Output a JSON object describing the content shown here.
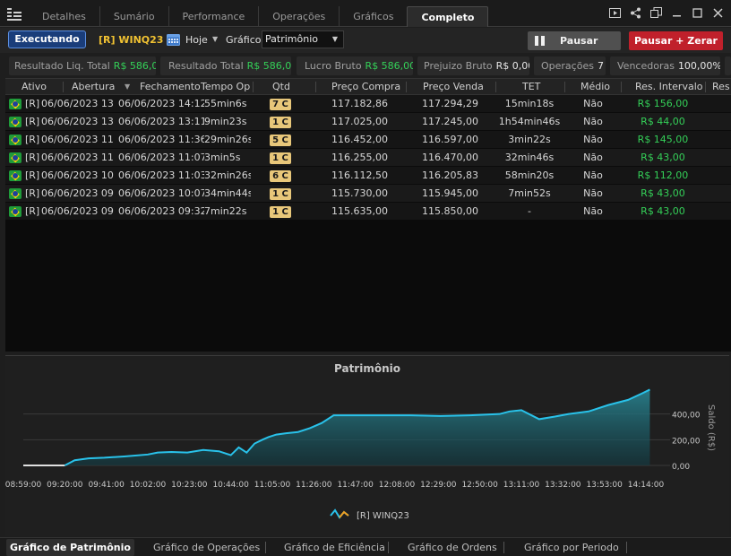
{
  "tabs": [
    "Detalhes",
    "Sumário",
    "Performance",
    "Operações",
    "Gráficos",
    "Completo"
  ],
  "active_tab": "Completo",
  "toolbar": {
    "status": "Executando",
    "asset": "[R] WINQ23",
    "period": "Hoje",
    "chart_label": "Gráfico",
    "chart_value": "Patrimônio",
    "pause": "Pausar",
    "pause_reset": "Pausar + Zerar"
  },
  "stats": [
    {
      "key": "Resultado Liq. Total",
      "value": "R$ 586,00",
      "color": "green"
    },
    {
      "key": "Resultado Total",
      "value": "R$ 586,00",
      "color": "green"
    },
    {
      "key": "Lucro Bruto",
      "value": "R$ 586,00",
      "color": "green"
    },
    {
      "key": "Prejuizo Bruto",
      "value": "R$ 0,00",
      "color": "white"
    },
    {
      "key": "Operações",
      "value": "7",
      "color": "white"
    },
    {
      "key": "Vencedoras",
      "value": "100,00%",
      "color": "white"
    }
  ],
  "table": {
    "headers": [
      "Ativo",
      "Abertura",
      "Fechamento",
      "Tempo Op",
      "Qtd",
      "Preço Compra",
      "Preço Venda",
      "TET",
      "Médio",
      "Res. Intervalo",
      "Res"
    ],
    "rows": [
      {
        "ativo": "[R] WIN",
        "abertura": "06/06/2023 13",
        "fechamento": "06/06/2023 14:12",
        "tempo": "55min6s",
        "qtd": "7 C",
        "compra": "117.182,86",
        "venda": "117.294,29",
        "tet": "15min18s",
        "medio": "Não",
        "res": "R$ 156,00"
      },
      {
        "ativo": "[R] WIN",
        "abertura": "06/06/2023 13",
        "fechamento": "06/06/2023 13:11",
        "tempo": "9min23s",
        "qtd": "1 C",
        "compra": "117.025,00",
        "venda": "117.245,00",
        "tet": "1h54min46s",
        "medio": "Não",
        "res": "R$ 44,00"
      },
      {
        "ativo": "[R] WIN",
        "abertura": "06/06/2023 11",
        "fechamento": "06/06/2023 11:36",
        "tempo": "29min26s",
        "qtd": "5 C",
        "compra": "116.452,00",
        "venda": "116.597,00",
        "tet": "3min22s",
        "medio": "Não",
        "res": "R$ 145,00"
      },
      {
        "ativo": "[R] WIN",
        "abertura": "06/06/2023 11",
        "fechamento": "06/06/2023 11:07",
        "tempo": "3min5s",
        "qtd": "1 C",
        "compra": "116.255,00",
        "venda": "116.470,00",
        "tet": "32min46s",
        "medio": "Não",
        "res": "R$ 43,00"
      },
      {
        "ativo": "[R] WIN",
        "abertura": "06/06/2023 10",
        "fechamento": "06/06/2023 11:03",
        "tempo": "32min26s",
        "qtd": "6 C",
        "compra": "116.112,50",
        "venda": "116.205,83",
        "tet": "58min20s",
        "medio": "Não",
        "res": "R$ 112,00"
      },
      {
        "ativo": "[R] WIN",
        "abertura": "06/06/2023 09",
        "fechamento": "06/06/2023 10:07",
        "tempo": "34min44s",
        "qtd": "1 C",
        "compra": "115.730,00",
        "venda": "115.945,00",
        "tet": "7min52s",
        "medio": "Não",
        "res": "R$ 43,00"
      },
      {
        "ativo": "[R] WIN",
        "abertura": "06/06/2023 09",
        "fechamento": "06/06/2023 09:32",
        "tempo": "7min22s",
        "qtd": "1 C",
        "compra": "115.635,00",
        "venda": "115.850,00",
        "tet": "-",
        "medio": "Não",
        "res": "R$ 43,00"
      }
    ]
  },
  "chart_data": {
    "type": "area",
    "title": "Patrimônio",
    "ylabel": "Saldo (R$)",
    "xlabel": "",
    "x_ticks": [
      "08:59:00",
      "09:20:00",
      "09:41:00",
      "10:02:00",
      "10:23:00",
      "10:44:00",
      "11:05:00",
      "11:26:00",
      "11:47:00",
      "12:08:00",
      "12:29:00",
      "12:50:00",
      "13:11:00",
      "13:32:00",
      "13:53:00",
      "14:14:00"
    ],
    "y_ticks": [
      "0,00",
      "200,00",
      "400,00"
    ],
    "ylim": [
      0,
      600
    ],
    "grid": true,
    "legend": "bottom-center",
    "series": [
      {
        "name": "[R] WINQ23",
        "color": "#29c2ea",
        "x": [
          "08:59",
          "09:20",
          "09:25",
          "09:32",
          "09:40",
          "09:50",
          "10:02",
          "10:07",
          "10:14",
          "10:22",
          "10:30",
          "10:38",
          "10:44",
          "10:48",
          "10:52",
          "10:56",
          "11:00",
          "11:03",
          "11:07",
          "11:12",
          "11:18",
          "11:24",
          "11:30",
          "11:36",
          "11:45",
          "12:00",
          "12:15",
          "12:30",
          "12:45",
          "13:00",
          "13:05",
          "13:11",
          "13:20",
          "13:28",
          "13:35",
          "13:45",
          "13:55",
          "14:05",
          "14:12",
          "14:16"
        ],
        "y": [
          0,
          0,
          40,
          55,
          60,
          70,
          85,
          100,
          105,
          100,
          120,
          110,
          80,
          140,
          100,
          170,
          200,
          220,
          240,
          250,
          260,
          290,
          330,
          390,
          390,
          390,
          390,
          385,
          390,
          400,
          420,
          430,
          360,
          380,
          400,
          420,
          470,
          510,
          560,
          590
        ]
      }
    ]
  },
  "bottom_tabs": [
    "Gráfico de Patrimônio",
    "Gráfico de Operações",
    "Gráfico de Eficiência",
    "Gráfico de Ordens",
    "Gráfico por Periodo"
  ],
  "active_bottom_tab": "Gráfico de Patrimônio"
}
